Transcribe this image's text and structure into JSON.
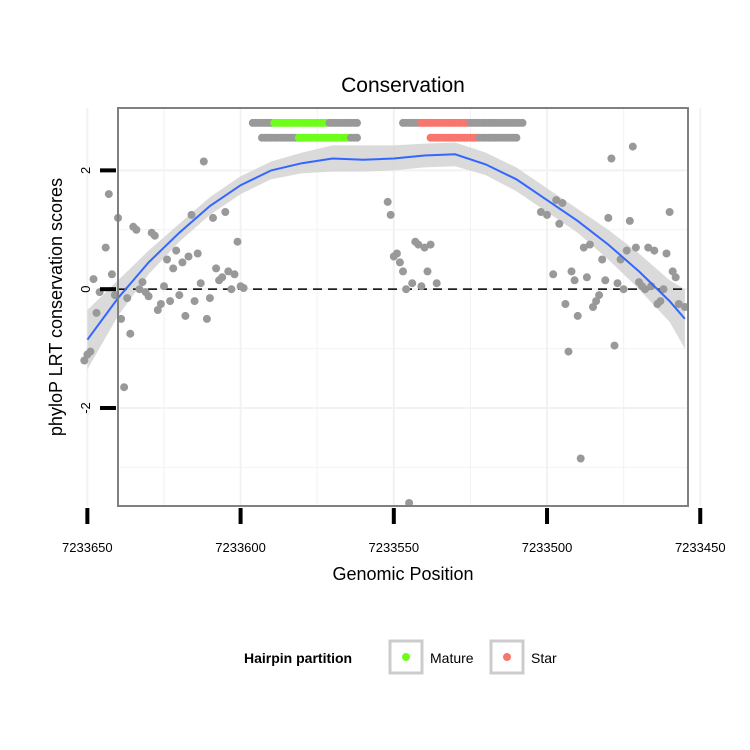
{
  "chart_data": {
    "type": "scatter",
    "title": "Conservation",
    "xlabel": "Genomic Position",
    "ylabel": "phyloP LRT conservation scores",
    "xlim": [
      7233454,
      7233640
    ],
    "ylim": [
      -3.65,
      3.05
    ],
    "x_reversed": true,
    "x_ticks": [
      7233650,
      7233600,
      7233550,
      7233500,
      7233450
    ],
    "x_tick_labels": [
      "7233650",
      "7233600",
      "7233550",
      "7233500",
      "7233450"
    ],
    "y_ticks": [
      -2,
      0,
      2
    ],
    "y_tick_labels": [
      "-2",
      "0",
      "2"
    ],
    "x_minor_gridlines": [
      7233625,
      7233575,
      7233525,
      7233475
    ],
    "y_minor_gridlines": [
      -3,
      -1,
      1
    ],
    "reference_line": {
      "y": 0,
      "style": "dashed",
      "color": "#000000"
    },
    "colors": {
      "point": "#999999",
      "mature": "#6dff1a",
      "star": "#f8766d",
      "smooth_line": "#3366ff",
      "ribbon": "#d3d3d3",
      "panel_border": "#808080",
      "grid": "#f2f2f2"
    },
    "legend": {
      "title": "Hairpin partition",
      "position": "bottom",
      "entries": [
        {
          "label": "Mature",
          "color": "#6dff1a"
        },
        {
          "label": "Star",
          "color": "#f8766d"
        }
      ]
    },
    "points": [
      [
        7233651,
        -1.2
      ],
      [
        7233650,
        -1.1
      ],
      [
        7233649,
        -1.05
      ],
      [
        7233648,
        0.17
      ],
      [
        7233647,
        -0.4
      ],
      [
        7233646,
        -0.05
      ],
      [
        7233644,
        0.7
      ],
      [
        7233643,
        1.6
      ],
      [
        7233642,
        0.25
      ],
      [
        7233641,
        -0.1
      ],
      [
        7233640,
        1.2
      ],
      [
        7233639,
        -0.5
      ],
      [
        7233638,
        -1.65
      ],
      [
        7233637,
        -0.15
      ],
      [
        7233636,
        -0.75
      ],
      [
        7233635,
        1.05
      ],
      [
        7233634,
        1.0
      ],
      [
        7233633,
        0.0
      ],
      [
        7233632,
        0.12
      ],
      [
        7233631,
        -0.05
      ],
      [
        7233630,
        -0.12
      ],
      [
        7233629,
        0.95
      ],
      [
        7233628,
        0.9
      ],
      [
        7233627,
        -0.35
      ],
      [
        7233626,
        -0.25
      ],
      [
        7233625,
        0.05
      ],
      [
        7233624,
        0.5
      ],
      [
        7233623,
        -0.2
      ],
      [
        7233622,
        0.35
      ],
      [
        7233621,
        0.65
      ],
      [
        7233620,
        -0.1
      ],
      [
        7233619,
        0.45
      ],
      [
        7233618,
        -0.45
      ],
      [
        7233617,
        0.55
      ],
      [
        7233616,
        1.25
      ],
      [
        7233615,
        -0.2
      ],
      [
        7233614,
        0.6
      ],
      [
        7233613,
        0.1
      ],
      [
        7233612,
        2.15
      ],
      [
        7233611,
        -0.5
      ],
      [
        7233610,
        -0.15
      ],
      [
        7233609,
        1.2
      ],
      [
        7233608,
        0.35
      ],
      [
        7233607,
        0.15
      ],
      [
        7233606,
        0.2
      ],
      [
        7233605,
        1.3
      ],
      [
        7233604,
        0.3
      ],
      [
        7233603,
        0.0
      ],
      [
        7233602,
        0.25
      ],
      [
        7233601,
        0.8
      ],
      [
        7233600,
        0.05
      ],
      [
        7233599,
        0.02
      ],
      [
        7233552,
        1.47
      ],
      [
        7233551,
        1.25
      ],
      [
        7233550,
        0.55
      ],
      [
        7233549,
        0.6
      ],
      [
        7233548,
        0.45
      ],
      [
        7233547,
        0.3
      ],
      [
        7233546,
        0.0
      ],
      [
        7233545,
        -3.6
      ],
      [
        7233544,
        0.1
      ],
      [
        7233543,
        0.8
      ],
      [
        7233542,
        0.75
      ],
      [
        7233541,
        0.05
      ],
      [
        7233540,
        0.7
      ],
      [
        7233539,
        0.3
      ],
      [
        7233538,
        0.75
      ],
      [
        7233536,
        0.1
      ],
      [
        7233502,
        1.3
      ],
      [
        7233500,
        1.25
      ],
      [
        7233498,
        0.25
      ],
      [
        7233497,
        1.5
      ],
      [
        7233496,
        1.1
      ],
      [
        7233495,
        1.45
      ],
      [
        7233494,
        -0.25
      ],
      [
        7233493,
        -1.05
      ],
      [
        7233492,
        0.3
      ],
      [
        7233491,
        0.15
      ],
      [
        7233490,
        -0.45
      ],
      [
        7233489,
        -2.85
      ],
      [
        7233488,
        0.7
      ],
      [
        7233487,
        0.2
      ],
      [
        7233486,
        0.75
      ],
      [
        7233485,
        -0.3
      ],
      [
        7233484,
        -0.2
      ],
      [
        7233483,
        -0.1
      ],
      [
        7233482,
        0.5
      ],
      [
        7233481,
        0.15
      ],
      [
        7233480,
        1.2
      ],
      [
        7233479,
        2.2
      ],
      [
        7233478,
        -0.95
      ],
      [
        7233477,
        0.1
      ],
      [
        7233476,
        0.5
      ],
      [
        7233475,
        0.0
      ],
      [
        7233474,
        0.65
      ],
      [
        7233473,
        1.15
      ],
      [
        7233472,
        2.4
      ],
      [
        7233471,
        0.7
      ],
      [
        7233470,
        0.12
      ],
      [
        7233469,
        0.05
      ],
      [
        7233468,
        0.0
      ],
      [
        7233467,
        0.7
      ],
      [
        7233466,
        0.05
      ],
      [
        7233465,
        0.65
      ],
      [
        7233464,
        -0.25
      ],
      [
        7233463,
        -0.2
      ],
      [
        7233462,
        0.0
      ],
      [
        7233461,
        0.6
      ],
      [
        7233460,
        1.3
      ],
      [
        7233459,
        0.3
      ],
      [
        7233458,
        0.2
      ],
      [
        7233457,
        -0.25
      ],
      [
        7233455,
        -0.3
      ]
    ],
    "top_strip": {
      "rows": [
        {
          "y": 2.8,
          "segments": [
            {
              "x0": 7233596,
              "x1": 7233590,
              "group": "other"
            },
            {
              "x0": 7233589,
              "x1": 7233572,
              "group": "mature"
            },
            {
              "x0": 7233571,
              "x1": 7233562,
              "group": "other"
            },
            {
              "x0": 7233547,
              "x1": 7233544,
              "group": "other"
            },
            {
              "x0": 7233543,
              "x1": 7233542,
              "group": "other"
            },
            {
              "x0": 7233541,
              "x1": 7233526,
              "group": "star"
            },
            {
              "x0": 7233525,
              "x1": 7233508,
              "group": "other"
            }
          ]
        },
        {
          "y": 2.55,
          "segments": [
            {
              "x0": 7233593,
              "x1": 7233582,
              "group": "other"
            },
            {
              "x0": 7233581,
              "x1": 7233565,
              "group": "mature"
            },
            {
              "x0": 7233564,
              "x1": 7233562,
              "group": "other"
            },
            {
              "x0": 7233538,
              "x1": 7233523,
              "group": "star"
            },
            {
              "x0": 7233522,
              "x1": 7233510,
              "group": "other"
            }
          ]
        }
      ]
    },
    "smooth": {
      "method": "loess",
      "x": [
        7233650,
        7233640,
        7233630,
        7233620,
        7233610,
        7233600,
        7233590,
        7233580,
        7233570,
        7233560,
        7233550,
        7233540,
        7233530,
        7233520,
        7233510,
        7233500,
        7233490,
        7233480,
        7233470,
        7233460,
        7233455
      ],
      "y": [
        -0.85,
        -0.15,
        0.45,
        0.95,
        1.4,
        1.75,
        2.0,
        2.12,
        2.2,
        2.18,
        2.2,
        2.25,
        2.27,
        2.1,
        1.85,
        1.5,
        1.15,
        0.75,
        0.3,
        -0.2,
        -0.5
      ],
      "se_lower": [
        -1.35,
        -0.45,
        0.25,
        0.8,
        1.25,
        1.6,
        1.85,
        1.95,
        1.98,
        1.98,
        2.0,
        2.05,
        2.07,
        1.92,
        1.65,
        1.3,
        0.95,
        0.5,
        0.0,
        -0.55,
        -1.0
      ],
      "se_upper": [
        -0.35,
        0.15,
        0.65,
        1.1,
        1.55,
        1.9,
        2.15,
        2.3,
        2.42,
        2.42,
        2.42,
        2.45,
        2.47,
        2.3,
        2.05,
        1.7,
        1.35,
        1.0,
        0.6,
        0.15,
        0.0
      ]
    }
  }
}
